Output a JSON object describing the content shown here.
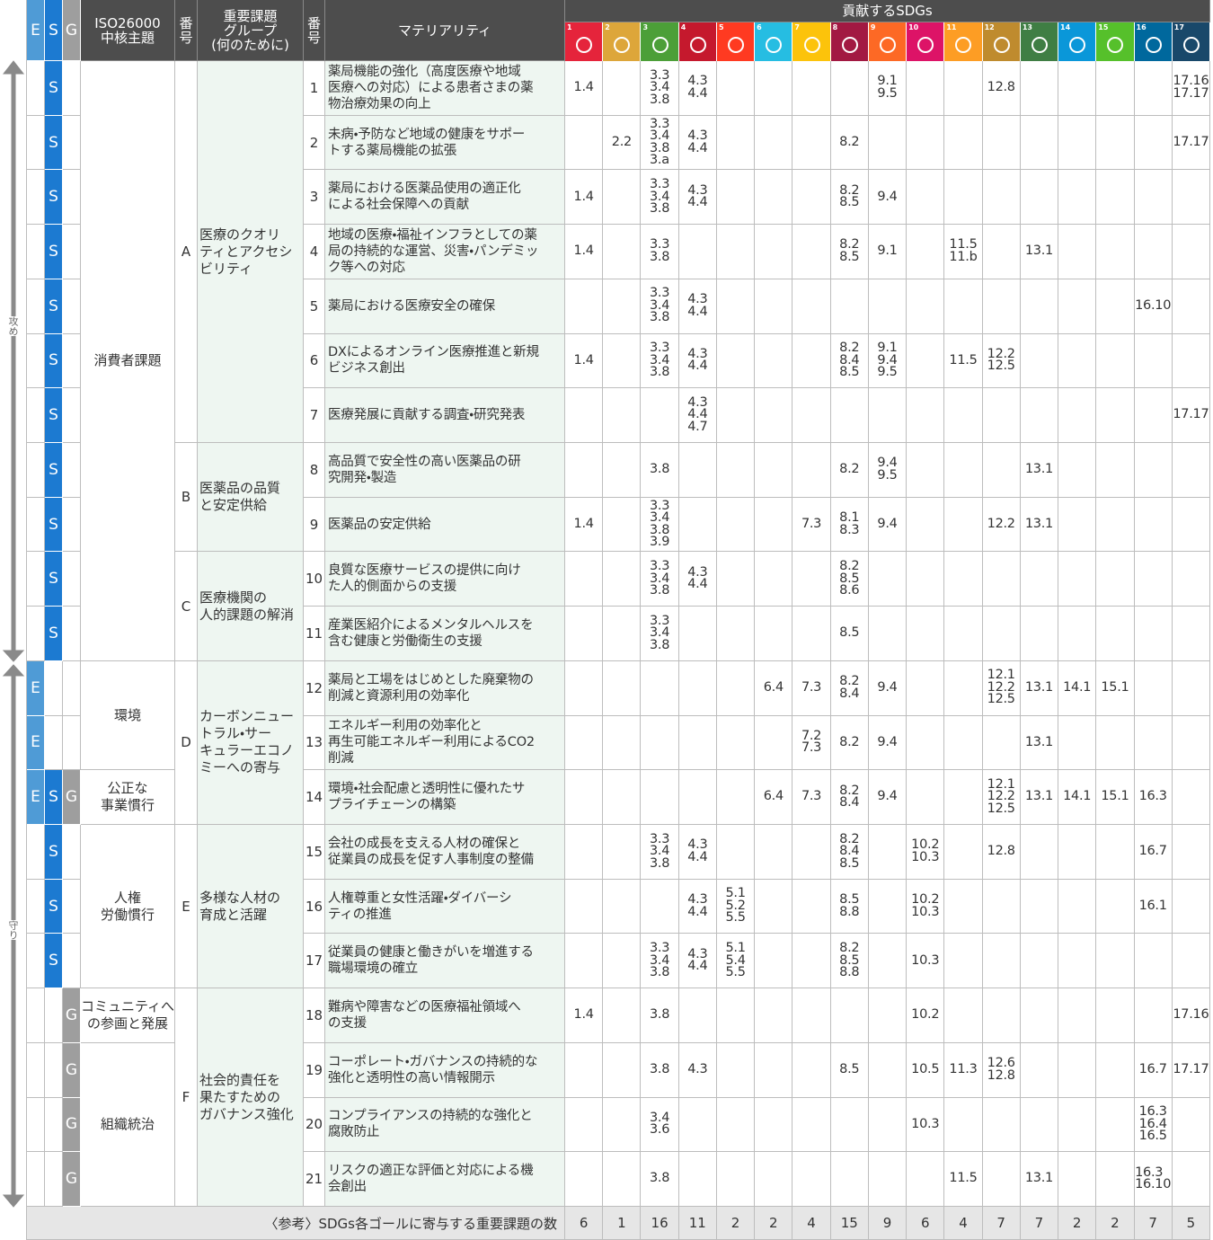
{
  "header": {
    "esg": [
      "E",
      "S",
      "G"
    ],
    "iso": [
      "ISO26000",
      "中核主題"
    ],
    "group_no": "番号",
    "group": [
      "重要課題",
      "グループ",
      "(何のために)"
    ],
    "no": "番号",
    "materiality": "マテリアリティ",
    "sdgs": "貢献するSDGs"
  },
  "esg_colors": [
    "#4f9bd6",
    "#1c7ad1",
    "#9e9e9e"
  ],
  "sdg_goals": [
    {
      "number": 1,
      "color": "#e5243b"
    },
    {
      "number": 2,
      "color": "#dda63a"
    },
    {
      "number": 3,
      "color": "#4c9f38"
    },
    {
      "number": 4,
      "color": "#c5192d"
    },
    {
      "number": 5,
      "color": "#ff3a21"
    },
    {
      "number": 6,
      "color": "#26bde2"
    },
    {
      "number": 7,
      "color": "#fcc30b"
    },
    {
      "number": 8,
      "color": "#a21942"
    },
    {
      "number": 9,
      "color": "#fd6925"
    },
    {
      "number": 10,
      "color": "#dd1367"
    },
    {
      "number": 11,
      "color": "#fd9d24"
    },
    {
      "number": 12,
      "color": "#bf8b2e"
    },
    {
      "number": 13,
      "color": "#3f7e44"
    },
    {
      "number": 14,
      "color": "#0a97d9"
    },
    {
      "number": 15,
      "color": "#56c02b"
    },
    {
      "number": 16,
      "color": "#00689d"
    },
    {
      "number": 17,
      "color": "#19486a"
    }
  ],
  "side": [
    "攻め",
    "守り"
  ],
  "themes": [
    [
      "消費者課題"
    ],
    [
      "環境"
    ],
    [
      "公正な",
      "事業慣行"
    ],
    [
      "人権",
      "",
      "労働慣行"
    ],
    [
      "コミュニティへ",
      "の参画と発展"
    ],
    [
      "組織統治"
    ]
  ],
  "groups": [
    {
      "letter": "A",
      "name": [
        "医療のクオリ",
        "ティとアクセシ",
        "ビリティ"
      ]
    },
    {
      "letter": "B",
      "name": [
        "医薬品の品質",
        "と安定供給"
      ]
    },
    {
      "letter": "C",
      "name": [
        "医療機関の",
        "人的課題の解消"
      ]
    },
    {
      "letter": "D",
      "name": [
        "カーボンニュー",
        "トラル・サー",
        "キュラーエコノ",
        "ミーへの寄与"
      ]
    },
    {
      "letter": "E",
      "name": [
        "多様な人材の",
        "育成と活躍"
      ]
    },
    {
      "letter": "F",
      "name": [
        "社会的責任を",
        "果たすための",
        "ガバナンス強化"
      ]
    }
  ],
  "rows": [
    {
      "esg": [
        "S"
      ],
      "no": 1,
      "text": [
        "薬局機能の強化（高度医療や地域",
        "医療への対応）による患者さまの薬",
        "物治療効果の向上"
      ],
      "sdgs": [
        [
          "1.4"
        ],
        [],
        [
          "3.3",
          "3.4",
          "3.8"
        ],
        [
          "4.3",
          "4.4"
        ],
        [],
        [],
        [],
        [],
        [
          "9.1",
          "9.5"
        ],
        [],
        [],
        [
          "12.8"
        ],
        [],
        [],
        [],
        [],
        [
          "17.16",
          "17.17"
        ]
      ]
    },
    {
      "esg": [
        "S"
      ],
      "no": 2,
      "text": [
        "未病・予防など地域の健康をサポー",
        "トする薬局機能の拡張"
      ],
      "sdgs": [
        [],
        [
          "2.2"
        ],
        [
          "3.3",
          "3.4",
          "3.8",
          "3.a"
        ],
        [
          "4.3",
          "4.4"
        ],
        [],
        [],
        [],
        [
          "8.2"
        ],
        [],
        [],
        [],
        [],
        [],
        [],
        [],
        [],
        [
          "17.17"
        ]
      ]
    },
    {
      "esg": [
        "S"
      ],
      "no": 3,
      "text": [
        "薬局における医薬品使用の適正化",
        "による社会保障への貢献"
      ],
      "sdgs": [
        [
          "1.4"
        ],
        [],
        [
          "3.3",
          "3.4",
          "3.8"
        ],
        [
          "4.3",
          "4.4"
        ],
        [],
        [],
        [],
        [
          "8.2",
          "8.5"
        ],
        [
          "9.4"
        ],
        [],
        [],
        [],
        [],
        [],
        [],
        [],
        []
      ]
    },
    {
      "esg": [
        "S"
      ],
      "no": 4,
      "text": [
        "地域の医療・福祉インフラとしての薬",
        "局の持続的な運営、災害・パンデミッ",
        "ク等への対応"
      ],
      "sdgs": [
        [
          "1.4"
        ],
        [],
        [
          "3.3",
          "3.8"
        ],
        [],
        [],
        [],
        [],
        [
          "8.2",
          "8.5"
        ],
        [
          "9.1"
        ],
        [],
        [
          "11.5",
          "11.b"
        ],
        [],
        [
          "13.1"
        ],
        [],
        [],
        [],
        []
      ]
    },
    {
      "esg": [
        "S"
      ],
      "no": 5,
      "text": [
        "薬局における医療安全の確保"
      ],
      "sdgs": [
        [],
        [],
        [
          "3.3",
          "3.4",
          "3.8"
        ],
        [
          "4.3",
          "4.4"
        ],
        [],
        [],
        [],
        [],
        [],
        [],
        [],
        [],
        [],
        [],
        [],
        [
          "16.10"
        ],
        []
      ]
    },
    {
      "esg": [
        "S"
      ],
      "no": 6,
      "text": [
        "DXによるオンライン医療推進と新規",
        "ビジネス創出"
      ],
      "sdgs": [
        [
          "1.4"
        ],
        [],
        [
          "3.3",
          "3.4",
          "3.8"
        ],
        [
          "4.3",
          "4.4"
        ],
        [],
        [],
        [],
        [
          "8.2",
          "8.4",
          "8.5"
        ],
        [
          "9.1",
          "9.4",
          "9.5"
        ],
        [],
        [
          "11.5"
        ],
        [
          "12.2",
          "12.5"
        ],
        [],
        [],
        [],
        [],
        []
      ]
    },
    {
      "esg": [
        "S"
      ],
      "no": 7,
      "text": [
        "医療発展に貢献する調査・研究発表"
      ],
      "sdgs": [
        [],
        [],
        [],
        [
          "4.3",
          "4.4",
          "4.7"
        ],
        [],
        [],
        [],
        [],
        [],
        [],
        [],
        [],
        [],
        [],
        [],
        [],
        [
          "17.17"
        ]
      ]
    },
    {
      "esg": [
        "S"
      ],
      "no": 8,
      "text": [
        "高品質で安全性の高い医薬品の研",
        "究開発・製造"
      ],
      "sdgs": [
        [],
        [],
        [
          "3.8"
        ],
        [],
        [],
        [],
        [],
        [
          "8.2"
        ],
        [
          "9.4",
          "9.5"
        ],
        [],
        [],
        [],
        [
          "13.1"
        ],
        [],
        [],
        [],
        []
      ]
    },
    {
      "esg": [
        "S"
      ],
      "no": 9,
      "text": [
        "医薬品の安定供給"
      ],
      "sdgs": [
        [
          "1.4"
        ],
        [],
        [
          "3.3",
          "3.4",
          "3.8",
          "3.9"
        ],
        [],
        [],
        [],
        [
          "7.3"
        ],
        [
          "8.1",
          "8.3"
        ],
        [
          "9.4"
        ],
        [],
        [],
        [
          "12.2"
        ],
        [
          "13.1"
        ],
        [],
        [],
        [],
        []
      ]
    },
    {
      "esg": [
        "S"
      ],
      "no": 10,
      "text": [
        "良質な医療サービスの提供に向け",
        "た人的側面からの支援"
      ],
      "sdgs": [
        [],
        [],
        [
          "3.3",
          "3.4",
          "3.8"
        ],
        [
          "4.3",
          "4.4"
        ],
        [],
        [],
        [],
        [
          "8.2",
          "8.5",
          "8.6"
        ],
        [],
        [],
        [],
        [],
        [],
        [],
        [],
        [],
        []
      ]
    },
    {
      "esg": [
        "S"
      ],
      "no": 11,
      "text": [
        "産業医紹介によるメンタルヘルスを",
        "含む健康と労働衛生の支援"
      ],
      "sdgs": [
        [],
        [],
        [
          "3.3",
          "3.4",
          "3.8"
        ],
        [],
        [],
        [],
        [],
        [
          "8.5"
        ],
        [],
        [],
        [],
        [],
        [],
        [],
        [],
        [],
        []
      ]
    },
    {
      "esg": [
        "E"
      ],
      "no": 12,
      "text": [
        "薬局と工場をはじめとした廃棄物の",
        "削減と資源利用の効率化"
      ],
      "sdgs": [
        [],
        [],
        [],
        [],
        [],
        [
          "6.4"
        ],
        [
          "7.3"
        ],
        [
          "8.2",
          "8.4"
        ],
        [
          "9.4"
        ],
        [],
        [],
        [
          "12.1",
          "12.2",
          "12.5"
        ],
        [
          "13.1"
        ],
        [
          "14.1"
        ],
        [
          "15.1"
        ],
        [],
        []
      ]
    },
    {
      "esg": [
        "E"
      ],
      "no": 13,
      "text": [
        "エネルギー利用の効率化と",
        "再生可能エネルギー利用によるCO2",
        "削減"
      ],
      "sdgs": [
        [],
        [],
        [],
        [],
        [],
        [],
        [
          "7.2",
          "7.3"
        ],
        [
          "8.2"
        ],
        [
          "9.4"
        ],
        [],
        [],
        [],
        [
          "13.1"
        ],
        [],
        [],
        [],
        []
      ]
    },
    {
      "esg": [
        "E",
        "S",
        "G"
      ],
      "no": 14,
      "text": [
        "環境・社会配慮と透明性に優れたサ",
        "プライチェーンの構築"
      ],
      "sdgs": [
        [],
        [],
        [],
        [],
        [],
        [
          "6.4"
        ],
        [
          "7.3"
        ],
        [
          "8.2",
          "8.4"
        ],
        [
          "9.4"
        ],
        [],
        [],
        [
          "12.1",
          "12.2",
          "12.5"
        ],
        [
          "13.1"
        ],
        [
          "14.1"
        ],
        [
          "15.1"
        ],
        [
          "16.3"
        ],
        []
      ]
    },
    {
      "esg": [
        "S"
      ],
      "no": 15,
      "text": [
        "会社の成長を支える人材の確保と",
        "従業員の成長を促す人事制度の整備"
      ],
      "sdgs": [
        [],
        [],
        [
          "3.3",
          "3.4",
          "3.8"
        ],
        [
          "4.3",
          "4.4"
        ],
        [],
        [],
        [],
        [
          "8.2",
          "8.4",
          "8.5"
        ],
        [],
        [
          "10.2",
          "10.3"
        ],
        [],
        [
          "12.8"
        ],
        [],
        [],
        [],
        [
          "16.7"
        ],
        []
      ]
    },
    {
      "esg": [
        "S"
      ],
      "no": 16,
      "text": [
        "人権尊重と女性活躍・ダイバーシ",
        "ティの推進"
      ],
      "sdgs": [
        [],
        [],
        [],
        [
          "4.3",
          "4.4"
        ],
        [
          "5.1",
          "5.2",
          "5.5"
        ],
        [],
        [],
        [
          "8.5",
          "8.8"
        ],
        [],
        [
          "10.2",
          "10.3"
        ],
        [],
        [],
        [],
        [],
        [],
        [
          "16.1"
        ],
        []
      ]
    },
    {
      "esg": [
        "S"
      ],
      "no": 17,
      "text": [
        "従業員の健康と働きがいを増進する",
        "職場環境の確立"
      ],
      "sdgs": [
        [],
        [],
        [
          "3.3",
          "3.4",
          "3.8"
        ],
        [
          "4.3",
          "4.4"
        ],
        [
          "5.1",
          "5.4",
          "5.5"
        ],
        [],
        [],
        [
          "8.2",
          "8.5",
          "8.8"
        ],
        [],
        [
          "10.3"
        ],
        [],
        [],
        [],
        [],
        [],
        [],
        []
      ]
    },
    {
      "esg": [
        "G"
      ],
      "no": 18,
      "text": [
        "難病や障害などの医療福祉領域へ",
        "の支援"
      ],
      "sdgs": [
        [
          "1.4"
        ],
        [],
        [
          "3.8"
        ],
        [],
        [],
        [],
        [],
        [],
        [],
        [
          "10.2"
        ],
        [],
        [],
        [],
        [],
        [],
        [],
        [
          "17.16"
        ]
      ]
    },
    {
      "esg": [
        "G"
      ],
      "no": 19,
      "text": [
        "コーポレート・ガバナンスの持続的な",
        "強化と透明性の高い情報開示"
      ],
      "sdgs": [
        [],
        [],
        [
          "3.8"
        ],
        [
          "4.3"
        ],
        [],
        [],
        [],
        [
          "8.5"
        ],
        [],
        [
          "10.5"
        ],
        [
          "11.3"
        ],
        [
          "12.6",
          "12.8"
        ],
        [],
        [],
        [],
        [
          "16.7"
        ],
        [
          "17.17"
        ]
      ]
    },
    {
      "esg": [
        "G"
      ],
      "no": 20,
      "text": [
        "コンプライアンスの持続的な強化と",
        "腐敗防止"
      ],
      "sdgs": [
        [],
        [],
        [
          "3.4",
          "3.6"
        ],
        [],
        [],
        [],
        [],
        [],
        [],
        [
          "10.3"
        ],
        [],
        [],
        [],
        [],
        [],
        [
          "16.3",
          "16.4",
          "16.5"
        ],
        []
      ]
    },
    {
      "esg": [
        "G"
      ],
      "no": 21,
      "text": [
        "リスクの適正な評価と対応による機",
        "会創出"
      ],
      "sdgs": [
        [],
        [],
        [
          "3.8"
        ],
        [],
        [],
        [],
        [],
        [],
        [],
        [],
        [
          "11.5"
        ],
        [],
        [
          "13.1"
        ],
        [],
        [],
        [
          "16.3",
          "16.10"
        ],
        []
      ]
    }
  ],
  "footer": {
    "label": "〈参考〉SDGs各ゴールに寄与する重要課題の数",
    "counts": [
      6,
      1,
      16,
      11,
      2,
      2,
      4,
      15,
      9,
      6,
      4,
      7,
      7,
      2,
      2,
      7,
      5
    ]
  }
}
